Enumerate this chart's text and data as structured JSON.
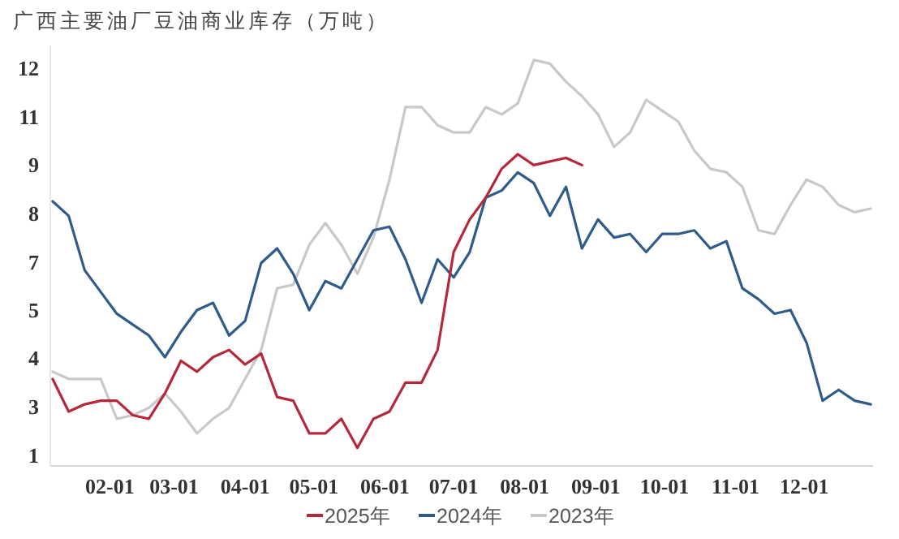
{
  "chart_data": {
    "type": "line",
    "title": "广西主要油厂豆油商业库存（万吨）",
    "x": [
      "--01-07",
      "--01-14",
      "--01-21",
      "--01-28",
      "--02-04",
      "--02-11",
      "--02-18",
      "--02-25",
      "--03-04",
      "--03-11",
      "--03-18",
      "--03-25",
      "--04-01",
      "--04-08",
      "--04-15",
      "--04-22",
      "--04-29",
      "--05-06",
      "--05-13",
      "--05-20",
      "--05-27",
      "--06-03",
      "--06-10",
      "--06-17",
      "--06-24",
      "--07-01",
      "--07-08",
      "--07-15",
      "--07-22",
      "--07-29",
      "--08-05",
      "--08-12",
      "--08-19",
      "--08-26",
      "--09-02",
      "--09-09",
      "--09-16",
      "--09-23",
      "--09-30",
      "--10-07",
      "--10-14",
      "--10-21",
      "--10-28",
      "--11-04",
      "--11-11",
      "--11-18",
      "--11-25",
      "--12-02",
      "--12-09",
      "--12-16",
      "--12-23",
      "--12-30"
    ],
    "xlim": [
      "--01-06",
      "--12-31"
    ],
    "xticks": [
      {
        "value": "--02-01",
        "label": "02-01"
      },
      {
        "value": "--03-01",
        "label": "03-01"
      },
      {
        "value": "--04-01",
        "label": "04-01"
      },
      {
        "value": "--05-01",
        "label": "05-01"
      },
      {
        "value": "--06-01",
        "label": "06-01"
      },
      {
        "value": "--07-01",
        "label": "07-01"
      },
      {
        "value": "--08-01",
        "label": "08-01"
      },
      {
        "value": "--09-01",
        "label": "09-01"
      },
      {
        "value": "--10-01",
        "label": "10-01"
      },
      {
        "value": "--11-01",
        "label": "11-01"
      },
      {
        "value": "--12-01",
        "label": "12-01"
      }
    ],
    "ylim": [
      1.1,
      12.7
    ],
    "yticks": [
      {
        "value": 1.4,
        "label": "1"
      },
      {
        "value": 2.73,
        "label": "3"
      },
      {
        "value": 4.07,
        "label": "4"
      },
      {
        "value": 5.4,
        "label": "5"
      },
      {
        "value": 6.73,
        "label": "7"
      },
      {
        "value": 8.07,
        "label": "8"
      },
      {
        "value": 9.4,
        "label": "9"
      },
      {
        "value": 10.73,
        "label": "11"
      },
      {
        "value": 12.07,
        "label": "12"
      }
    ],
    "grid": false,
    "legend": "bottom",
    "marker": "none",
    "line_style": "solid",
    "series": [
      {
        "name": "2025年",
        "color": "#b5283a",
        "values": [
          3.5,
          2.6,
          2.8,
          2.9,
          2.9,
          2.5,
          2.4,
          3.1,
          4.0,
          3.7,
          4.1,
          4.3,
          3.9,
          4.2,
          3.0,
          2.9,
          2.0,
          2.0,
          2.4,
          1.6,
          2.4,
          2.6,
          3.4,
          3.4,
          4.3,
          7.0,
          7.9,
          8.5,
          9.3,
          9.7,
          9.4,
          9.5,
          9.6,
          9.4,
          null,
          null,
          null,
          null,
          null,
          null,
          null,
          null,
          null,
          null,
          null,
          null,
          null,
          null,
          null,
          null,
          null,
          null
        ]
      },
      {
        "name": "2024年",
        "color": "#2e5b8a",
        "values": [
          8.4,
          8.0,
          6.5,
          5.9,
          5.3,
          5.0,
          4.7,
          4.1,
          4.8,
          5.4,
          5.6,
          4.7,
          5.1,
          6.7,
          7.1,
          6.4,
          5.4,
          6.2,
          6.0,
          6.8,
          7.6,
          7.7,
          6.8,
          5.6,
          6.8,
          6.3,
          7.0,
          8.5,
          8.7,
          9.2,
          8.9,
          8.0,
          8.8,
          7.1,
          7.9,
          7.4,
          7.5,
          7.0,
          7.5,
          7.5,
          7.6,
          7.1,
          7.3,
          6.0,
          5.7,
          5.3,
          5.4,
          4.5,
          2.9,
          3.2,
          2.9,
          2.8
        ]
      },
      {
        "name": "2023年",
        "color": "#c8c8c8",
        "values": [
          3.7,
          3.5,
          3.5,
          3.5,
          2.4,
          2.5,
          2.7,
          3.1,
          2.6,
          2.0,
          2.4,
          2.7,
          3.5,
          4.3,
          6.0,
          6.1,
          7.2,
          7.8,
          7.2,
          6.4,
          7.4,
          9.0,
          11.0,
          11.0,
          10.5,
          10.3,
          10.3,
          11.0,
          10.8,
          11.1,
          12.3,
          12.2,
          11.7,
          11.3,
          10.8,
          9.9,
          10.3,
          11.2,
          10.9,
          10.6,
          9.8,
          9.3,
          9.2,
          8.8,
          7.6,
          7.5,
          8.3,
          9.0,
          8.8,
          8.3,
          8.1,
          8.2
        ]
      }
    ]
  }
}
